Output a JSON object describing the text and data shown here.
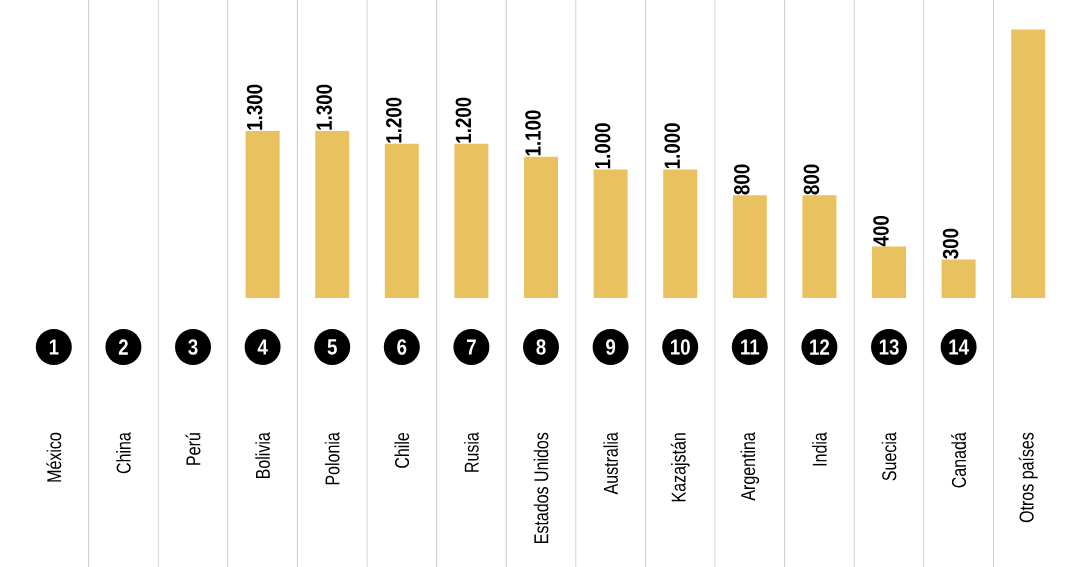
{
  "chart_data": {
    "type": "bar",
    "categories": [
      "México",
      "China",
      "Perú",
      "Bolivia",
      "Polonia",
      "Chile",
      "Rusia",
      "Estados Unidos",
      "Australia",
      "Kazajstán",
      "Argentina",
      "India",
      "Suecia",
      "Canadá",
      "Otros países"
    ],
    "values": [
      null,
      null,
      null,
      1300,
      1300,
      1200,
      1200,
      1100,
      1000,
      1000,
      800,
      800,
      400,
      300,
      2090
    ],
    "value_labels": [
      null,
      null,
      null,
      "1.300",
      "1.300",
      "1.200",
      "1.200",
      "1.100",
      "1.000",
      "1.000",
      "800",
      "800",
      "400",
      "300",
      null
    ],
    "color": "#e9c25f",
    "ylim": [
      0,
      2320
    ],
    "annotations": [
      "1",
      "2",
      "3",
      "4",
      "5",
      "6",
      "7",
      "8",
      "9",
      "10",
      "11",
      "12",
      "13",
      "14"
    ]
  }
}
